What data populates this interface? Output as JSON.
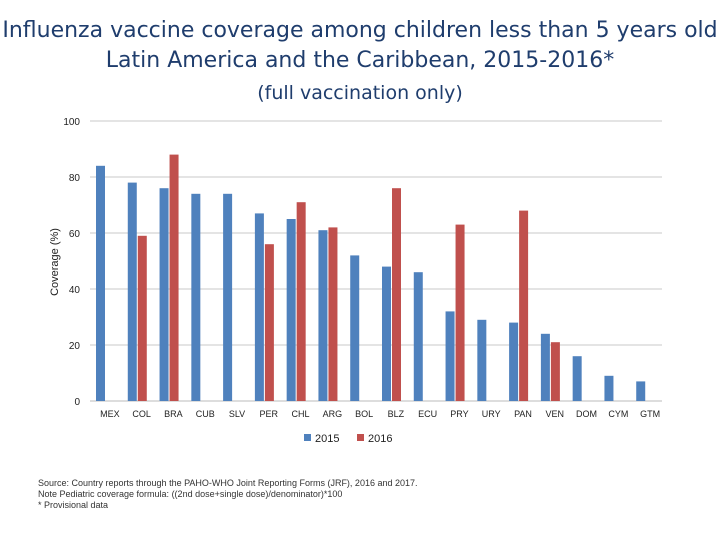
{
  "title": {
    "line1": "Influenza vaccine coverage among children less than 5 years old",
    "line2": "Latin America and the Caribbean, 2015-2016*",
    "line3": "(full vaccination only)"
  },
  "footnotes": {
    "source": "Source: Country reports through the PAHO-WHO Joint Reporting Forms (JRF), 2016 and 2017.",
    "note": "Note Pediatric coverage formula: ((2nd dose+single dose)/denominator)*100",
    "provisional": "* Provisional data"
  },
  "chart_data": {
    "type": "bar",
    "title": "Influenza vaccine coverage among children less than 5 years old Latin America and the Caribbean, 2015-2016*",
    "xlabel": "",
    "ylabel": "Coverage (%)",
    "ylim": [
      0,
      100
    ],
    "yticks": [
      0,
      20,
      40,
      60,
      80,
      100
    ],
    "grid": true,
    "legend_position": "bottom",
    "categories": [
      "MEX",
      "COL",
      "BRA",
      "CUB",
      "SLV",
      "PER",
      "CHL",
      "ARG",
      "BOL",
      "BLZ",
      "ECU",
      "PRY",
      "URY",
      "PAN",
      "VEN",
      "DOM",
      "CYM",
      "GTM"
    ],
    "series": [
      {
        "name": "2015",
        "color": "#4f81bd",
        "values": [
          84,
          78,
          76,
          74,
          74,
          67,
          65,
          61,
          52,
          48,
          46,
          32,
          29,
          28,
          24,
          16,
          9,
          7
        ]
      },
      {
        "name": "2016",
        "color": "#c0504d",
        "values": [
          null,
          59,
          88,
          null,
          null,
          56,
          71,
          62,
          null,
          76,
          null,
          63,
          null,
          68,
          21,
          null,
          null,
          null
        ]
      }
    ]
  }
}
